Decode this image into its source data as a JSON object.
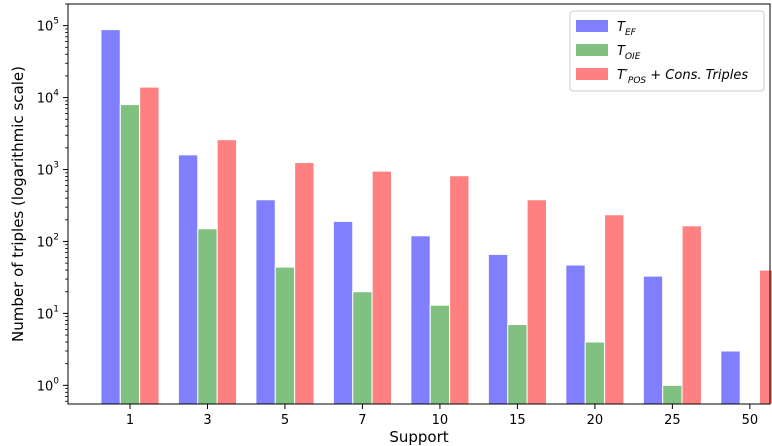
{
  "chart_data": {
    "type": "bar",
    "y_scale": "log",
    "ylim": [
      0.55,
      200000
    ],
    "xlabel": "Support",
    "ylabel": "Number of triples (logarithmic scale)",
    "grid": false,
    "legend_position": "top-right",
    "categories": [
      "1",
      "3",
      "5",
      "7",
      "10",
      "15",
      "20",
      "25",
      "50"
    ],
    "y_ticks": [
      {
        "value": 1,
        "base": "10",
        "exp": "0"
      },
      {
        "value": 10,
        "base": "10",
        "exp": "1"
      },
      {
        "value": 100,
        "base": "10",
        "exp": "2"
      },
      {
        "value": 1000,
        "base": "10",
        "exp": "3"
      },
      {
        "value": 10000,
        "base": "10",
        "exp": "4"
      },
      {
        "value": 100000,
        "base": "10",
        "exp": "5"
      }
    ],
    "series": [
      {
        "name": "T_EF",
        "legend": {
          "main": "T",
          "sub": "EF",
          "rest": ""
        },
        "color": "#8080ff",
        "values": [
          88000,
          1600,
          380,
          190,
          120,
          66,
          47,
          33,
          3
        ]
      },
      {
        "name": "T_OIE",
        "legend": {
          "main": "T",
          "sub": "OIE",
          "rest": ""
        },
        "color": "#80c080",
        "values": [
          8000,
          150,
          44,
          20,
          13,
          7,
          4,
          1,
          null
        ]
      },
      {
        "name": "T'_POS + Cons. Triples",
        "legend": {
          "main": "T′",
          "sub": "POS",
          "rest": " + Cons. Triples"
        },
        "color": "#ff8080",
        "values": [
          14000,
          2600,
          1250,
          950,
          820,
          380,
          235,
          165,
          40
        ]
      }
    ]
  }
}
